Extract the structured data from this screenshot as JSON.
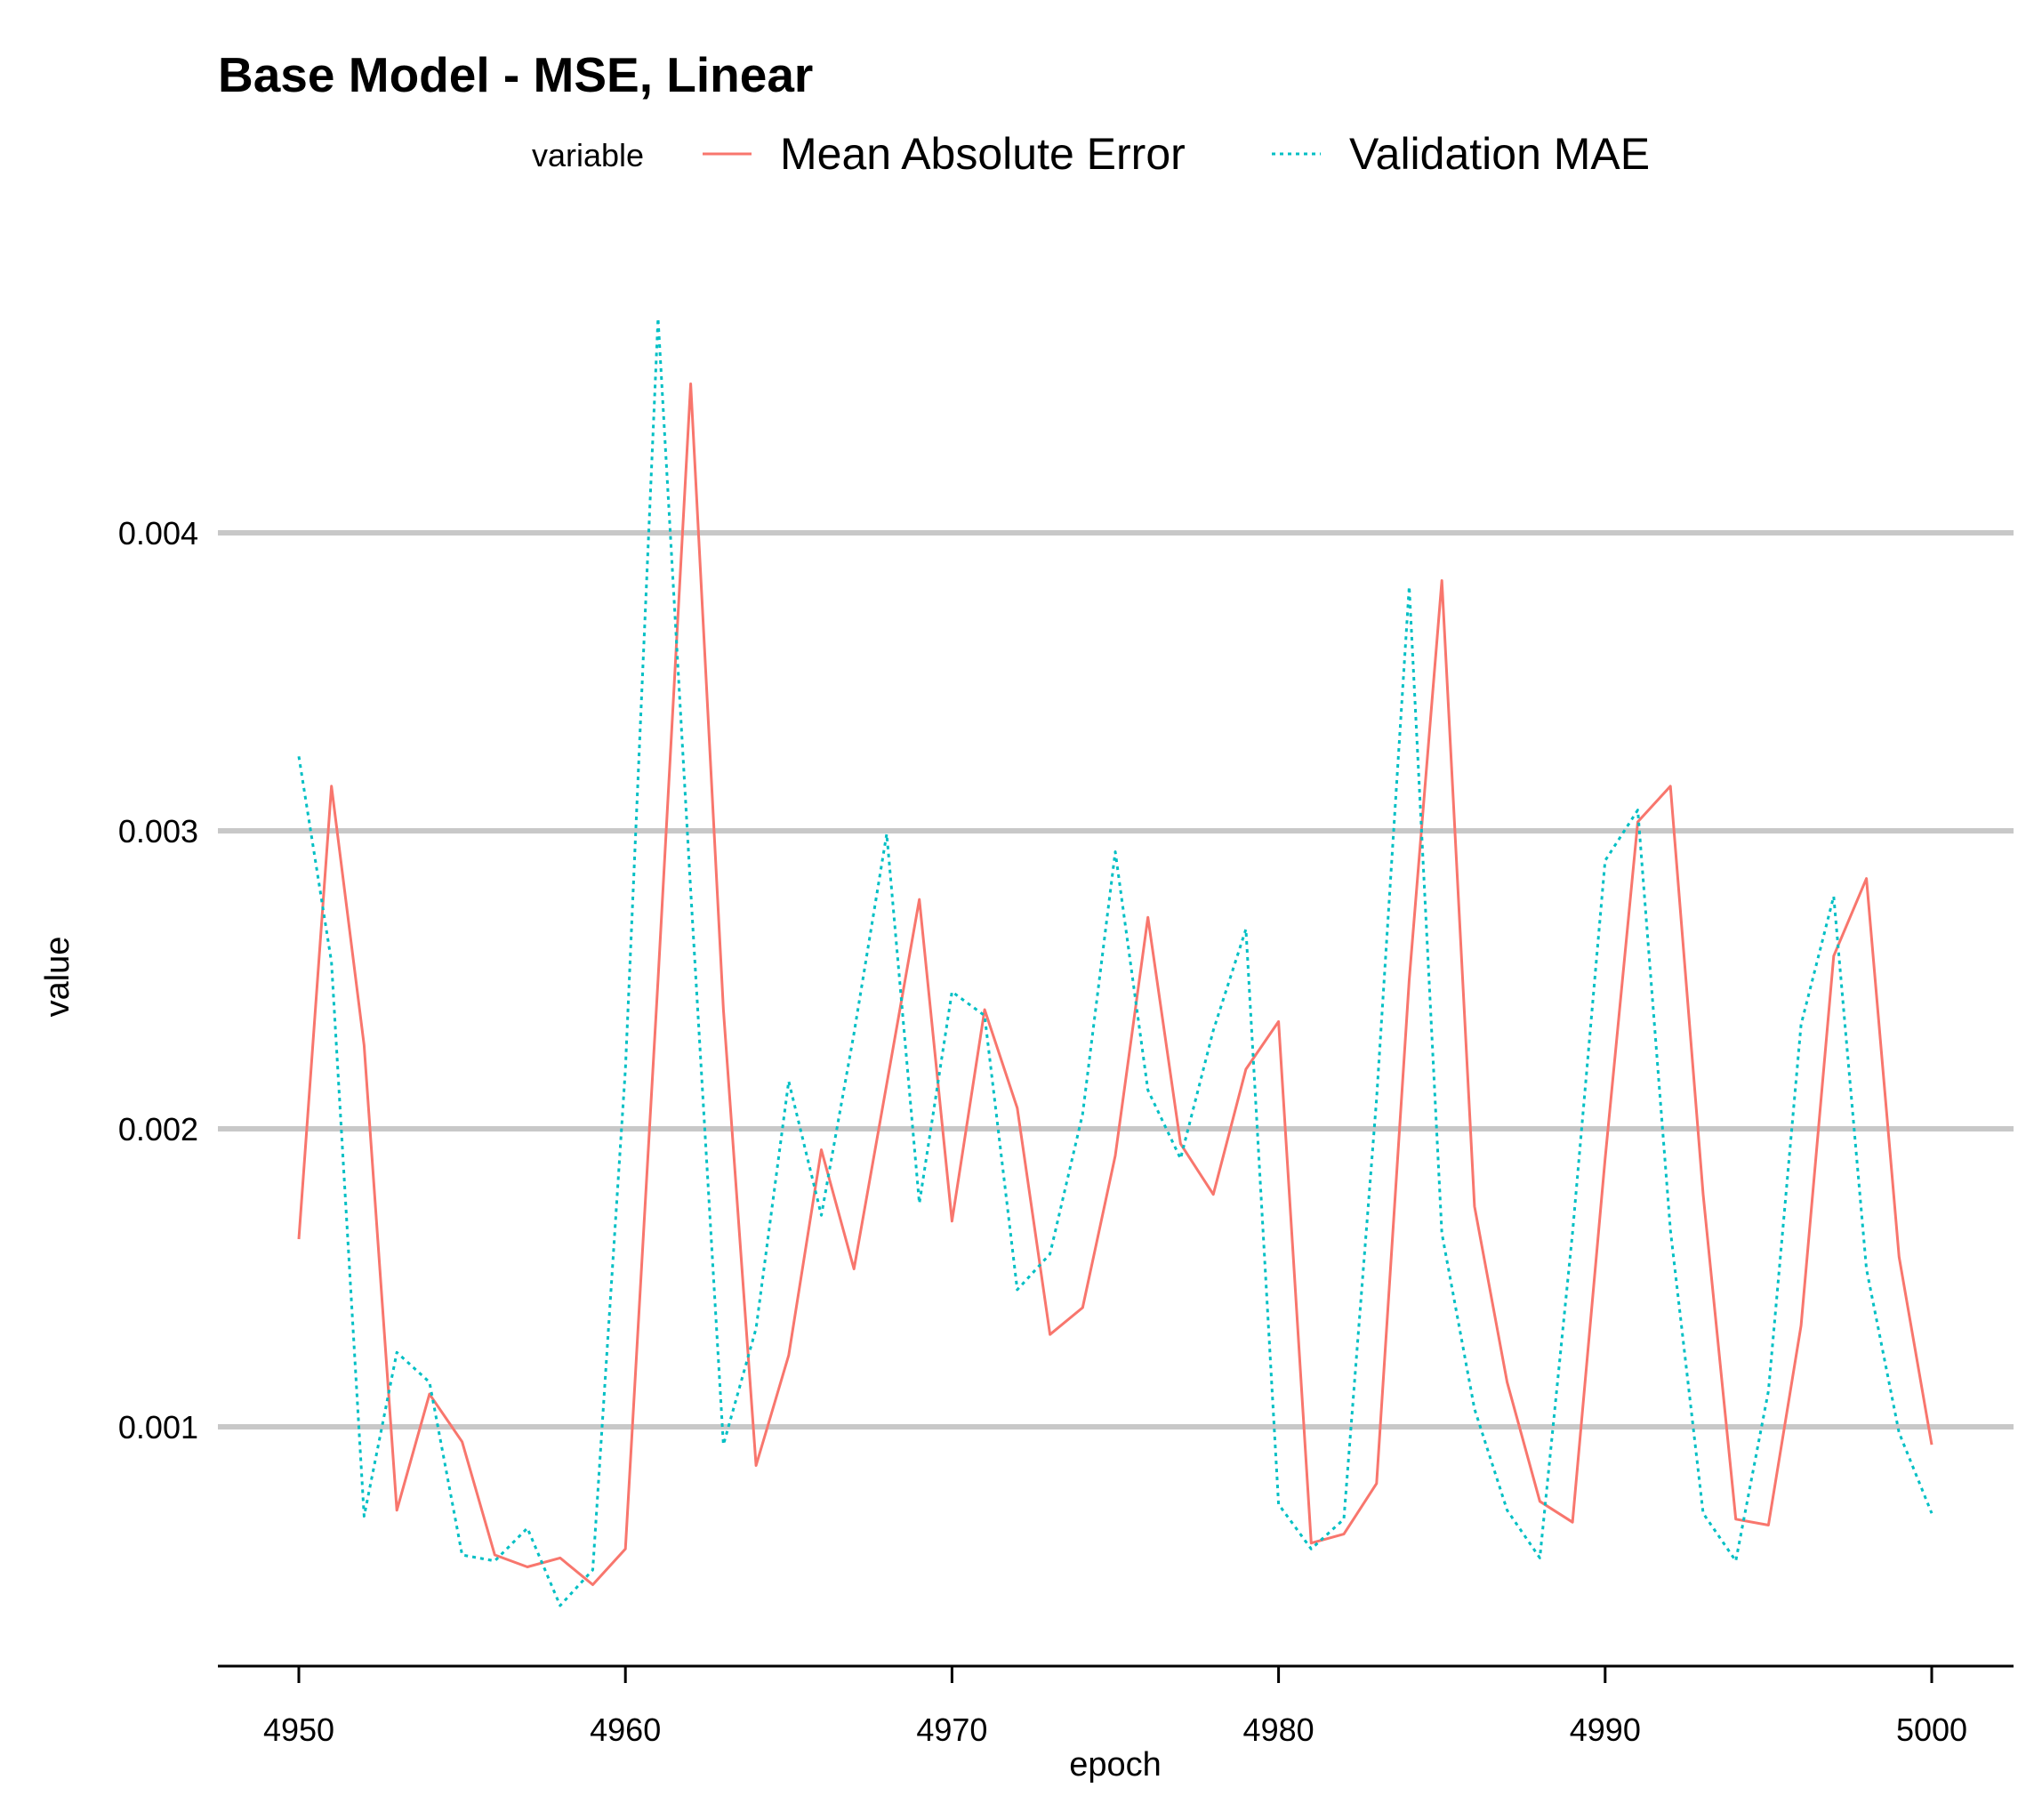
{
  "chart_data": {
    "type": "line",
    "title": "Base Model - MSE, Linear",
    "xlabel": "epoch",
    "ylabel": "value",
    "legend_title": "variable",
    "legend_position": "top",
    "grid": "horizontal-major",
    "xlim": [
      4947.5,
      5002.5
    ],
    "ylim": [
      0.00018,
      0.0049
    ],
    "x_ticks": [
      4950,
      4960,
      4970,
      4980,
      4990,
      5000
    ],
    "y_ticks": [
      0.001,
      0.002,
      0.003,
      0.004
    ],
    "x_tick_labels": [
      "4950",
      "4960",
      "4970",
      "4980",
      "4990",
      "5000"
    ],
    "y_tick_labels": [
      "0.001",
      "0.002",
      "0.003",
      "0.004"
    ],
    "x": [
      4950,
      4951,
      4952,
      4953,
      4954,
      4955,
      4956,
      4957,
      4958,
      4959,
      4960,
      4961,
      4962,
      4963,
      4964,
      4965,
      4966,
      4967,
      4968,
      4969,
      4970,
      4971,
      4972,
      4973,
      4974,
      4975,
      4976,
      4977,
      4978,
      4979,
      4980,
      4981,
      4982,
      4983,
      4984,
      4985,
      4986,
      4987,
      4988,
      4989,
      4990,
      4991,
      4992,
      4993,
      4994,
      4995,
      4996,
      4997,
      4998,
      4999,
      5000
    ],
    "series": [
      {
        "name": "Mean Absolute Error",
        "color": "#F8766D",
        "dash": "solid",
        "values": [
          0.00163,
          0.00315,
          0.00228,
          0.00072,
          0.00111,
          0.00095,
          0.00057,
          0.00053,
          0.00056,
          0.00047,
          0.00059,
          0.0025,
          0.0045,
          0.0024,
          0.00087,
          0.00124,
          0.00193,
          0.00153,
          0.00215,
          0.00277,
          0.00169,
          0.0024,
          0.00207,
          0.00131,
          0.0014,
          0.00191,
          0.00271,
          0.00195,
          0.00178,
          0.0022,
          0.00236,
          0.00061,
          0.00064,
          0.00081,
          0.0025,
          0.00384,
          0.00174,
          0.00115,
          0.00075,
          0.00068,
          0.0019,
          0.00303,
          0.00315,
          0.00178,
          0.00069,
          0.00067,
          0.00134,
          0.00258,
          0.00284,
          0.00157,
          0.00094
        ]
      },
      {
        "name": "Validation MAE",
        "color": "#00BFC4",
        "dash": "dotted",
        "values": [
          0.00325,
          0.00256,
          0.0007,
          0.00125,
          0.00115,
          0.00057,
          0.00055,
          0.00066,
          0.0004,
          0.00052,
          0.0022,
          0.00472,
          0.0028,
          0.00094,
          0.00133,
          0.00216,
          0.00171,
          0.00232,
          0.00299,
          0.00175,
          0.00246,
          0.00238,
          0.00146,
          0.00158,
          0.00205,
          0.00293,
          0.00213,
          0.0019,
          0.00233,
          0.00267,
          0.00074,
          0.00059,
          0.00069,
          0.0021,
          0.00382,
          0.00165,
          0.00106,
          0.00072,
          0.00056,
          0.00165,
          0.0029,
          0.00307,
          0.00166,
          0.00071,
          0.00055,
          0.00112,
          0.00235,
          0.00278,
          0.00153,
          0.00098,
          0.00071
        ]
      }
    ]
  }
}
